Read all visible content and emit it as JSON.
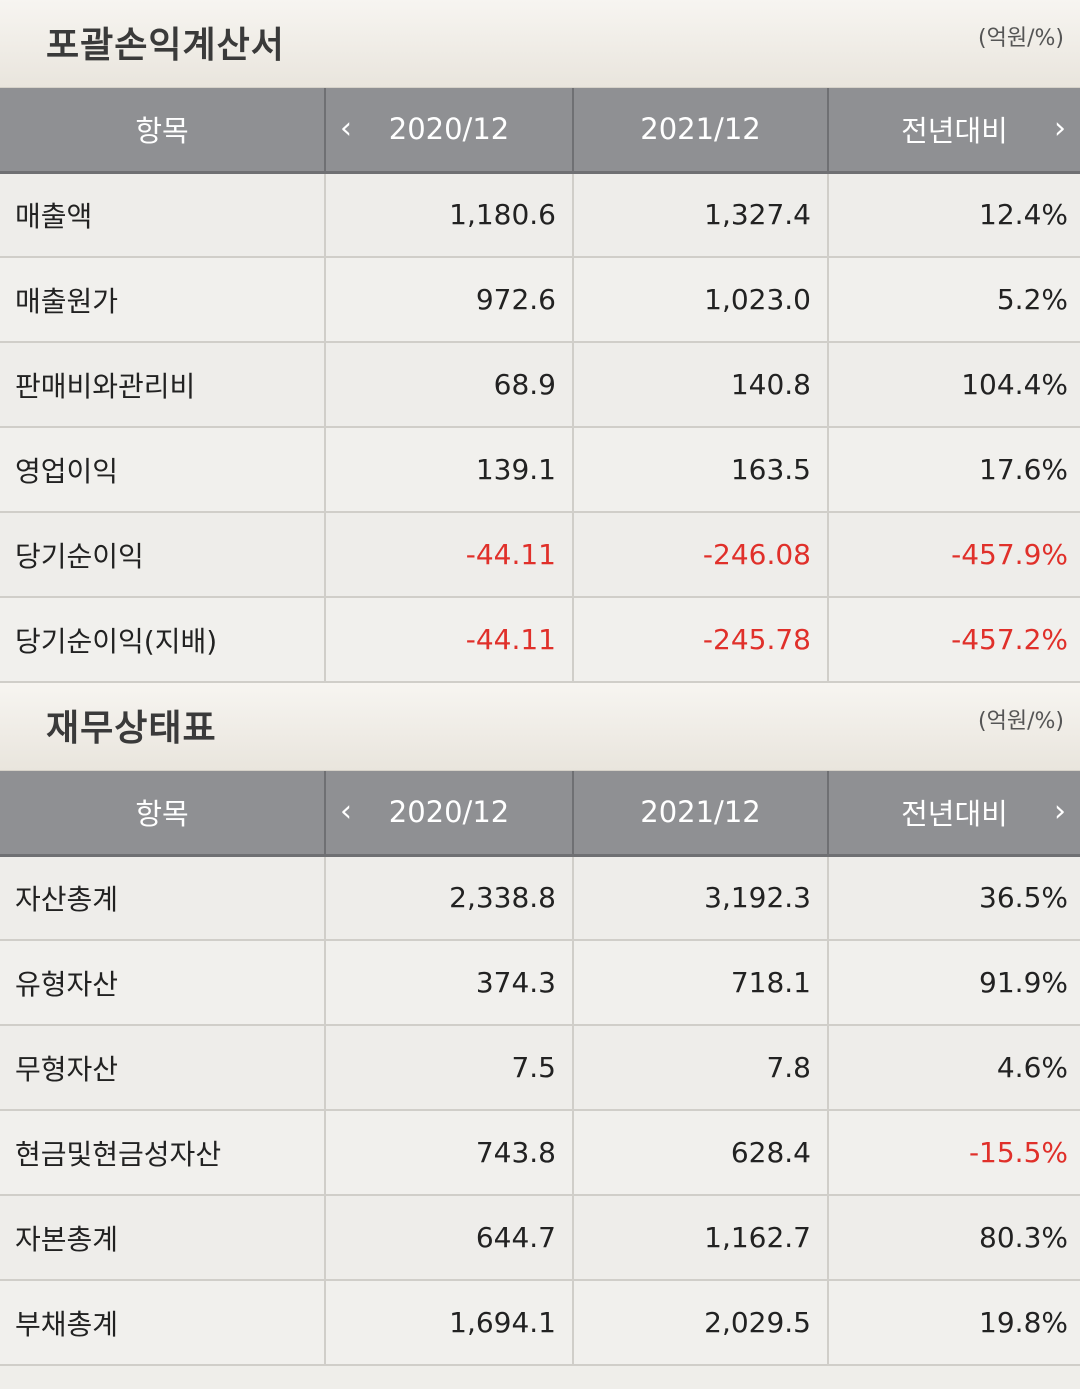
{
  "income": {
    "title": "포괄손익계산서",
    "unit": "(억원/%)",
    "headers": {
      "item": "항목",
      "y1": "2020/12",
      "y2": "2021/12",
      "yoy": "전년대비"
    },
    "rows": [
      {
        "label": "매출액",
        "v1": "1,180.6",
        "v2": "1,327.4",
        "yoy": "12.4%",
        "neg1": false,
        "neg2": false,
        "neg3": false
      },
      {
        "label": "매출원가",
        "v1": "972.6",
        "v2": "1,023.0",
        "yoy": "5.2%",
        "neg1": false,
        "neg2": false,
        "neg3": false
      },
      {
        "label": "판매비와관리비",
        "v1": "68.9",
        "v2": "140.8",
        "yoy": "104.4%",
        "neg1": false,
        "neg2": false,
        "neg3": false
      },
      {
        "label": "영업이익",
        "v1": "139.1",
        "v2": "163.5",
        "yoy": "17.6%",
        "neg1": false,
        "neg2": false,
        "neg3": false
      },
      {
        "label": "당기순이익",
        "v1": "-44.11",
        "v2": "-246.08",
        "yoy": "-457.9%",
        "neg1": true,
        "neg2": true,
        "neg3": true
      },
      {
        "label": "당기순이익(지배)",
        "v1": "-44.11",
        "v2": "-245.78",
        "yoy": "-457.2%",
        "neg1": true,
        "neg2": true,
        "neg3": true
      }
    ]
  },
  "balance": {
    "title": "재무상태표",
    "unit": "(억원/%)",
    "headers": {
      "item": "항목",
      "y1": "2020/12",
      "y2": "2021/12",
      "yoy": "전년대비"
    },
    "rows": [
      {
        "label": "자산총계",
        "v1": "2,338.8",
        "v2": "3,192.3",
        "yoy": "36.5%",
        "neg1": false,
        "neg2": false,
        "neg3": false
      },
      {
        "label": "유형자산",
        "v1": "374.3",
        "v2": "718.1",
        "yoy": "91.9%",
        "neg1": false,
        "neg2": false,
        "neg3": false
      },
      {
        "label": "무형자산",
        "v1": "7.5",
        "v2": "7.8",
        "yoy": "4.6%",
        "neg1": false,
        "neg2": false,
        "neg3": false
      },
      {
        "label": "현금및현금성자산",
        "v1": "743.8",
        "v2": "628.4",
        "yoy": "-15.5%",
        "neg1": false,
        "neg2": false,
        "neg3": true
      },
      {
        "label": "자본총계",
        "v1": "644.7",
        "v2": "1,162.7",
        "yoy": "80.3%",
        "neg1": false,
        "neg2": false,
        "neg3": false
      },
      {
        "label": "부채총계",
        "v1": "1,694.1",
        "v2": "2,029.5",
        "yoy": "19.8%",
        "neg1": false,
        "neg2": false,
        "neg3": false
      }
    ]
  },
  "colors": {
    "negative": "#e0302a",
    "header_bg": "#8f9093"
  },
  "icons": {
    "prev": "chevron-left-icon",
    "next": "chevron-right-icon"
  }
}
